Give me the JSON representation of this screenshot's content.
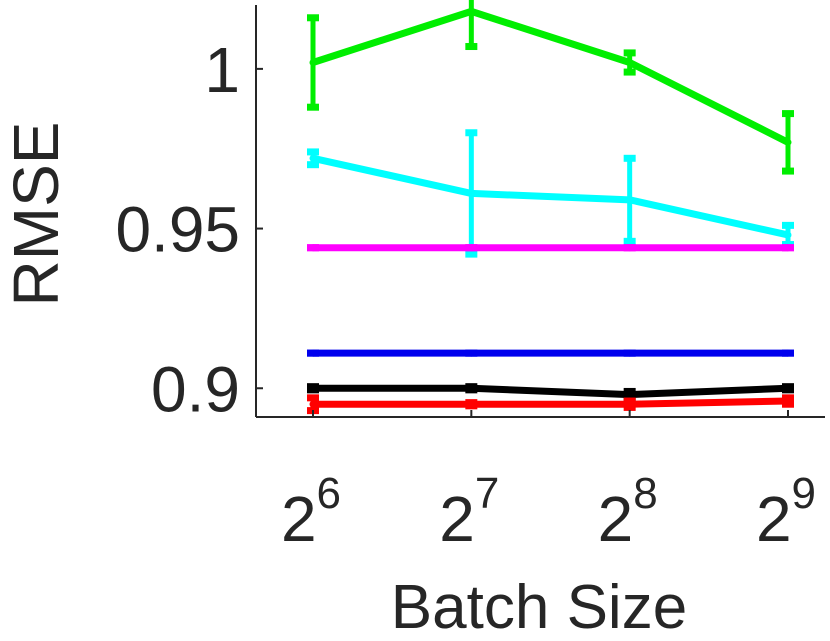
{
  "chart_data": {
    "type": "line",
    "xlabel": "Batch Size",
    "ylabel": "RMSE",
    "x_scale": "log2",
    "x": [
      64,
      128,
      256,
      512
    ],
    "x_tick_labels": [
      {
        "base": "2",
        "exp": "6"
      },
      {
        "base": "2",
        "exp": "7"
      },
      {
        "base": "2",
        "exp": "8"
      },
      {
        "base": "2",
        "exp": "9"
      }
    ],
    "y_ticks": [
      0.9,
      0.95,
      1.0
    ],
    "y_tick_labels": [
      "0.9",
      "0.95",
      "1"
    ],
    "ylim": [
      0.891,
      1.02
    ],
    "grid": false,
    "series": [
      {
        "color": "#00ee00",
        "values": [
          1.002,
          1.018,
          1.002,
          0.977
        ],
        "err": [
          0.014,
          0.011,
          0.003,
          0.009
        ]
      },
      {
        "color": "#00ffff",
        "values": [
          0.972,
          0.961,
          0.959,
          0.948
        ],
        "err": [
          0.002,
          0.019,
          0.013,
          0.003
        ]
      },
      {
        "color": "#ff00ff",
        "values": [
          0.944,
          0.944,
          0.944,
          0.944
        ],
        "err": [
          0,
          0,
          0,
          0
        ]
      },
      {
        "color": "#0000ee",
        "values": [
          0.911,
          0.911,
          0.911,
          0.911
        ],
        "err": [
          0,
          0,
          0,
          0
        ]
      },
      {
        "color": "#000000",
        "values": [
          0.9,
          0.9,
          0.898,
          0.9
        ],
        "err": [
          0.0005,
          0.0005,
          0.001,
          0.0005
        ]
      },
      {
        "color": "#ff0000",
        "values": [
          0.895,
          0.895,
          0.895,
          0.896
        ],
        "err": [
          0.002,
          0.0005,
          0.001,
          0.001
        ]
      }
    ]
  }
}
